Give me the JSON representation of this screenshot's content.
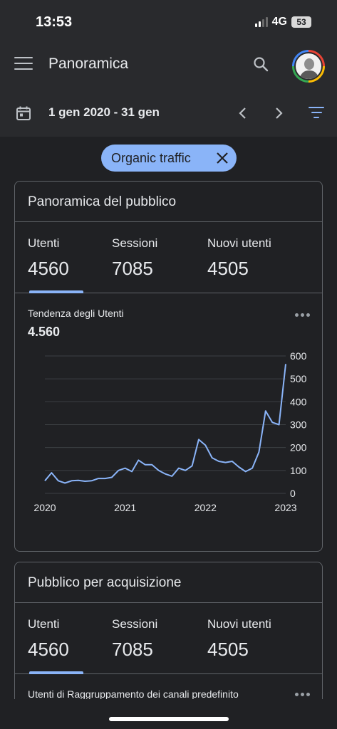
{
  "status": {
    "time": "13:53",
    "network": "4G",
    "battery": "53"
  },
  "app_bar": {
    "title": "Panoramica",
    "menu_icon": "menu-icon",
    "search_icon": "search-icon"
  },
  "date_bar": {
    "range": "1 gen 2020 - 31 gen"
  },
  "filter_chip": {
    "label": "Organic traffic"
  },
  "card_audience": {
    "title": "Panoramica del pubblico",
    "metrics": [
      {
        "label": "Utenti",
        "value": "4560"
      },
      {
        "label": "Sessioni",
        "value": "7085"
      },
      {
        "label": "Nuovi utenti",
        "value": "4505"
      }
    ],
    "trend_title": "Tendenza degli Utenti",
    "trend_value": "4.560"
  },
  "card_acquisition": {
    "title": "Pubblico per acquisizione",
    "metrics": [
      {
        "label": "Utenti",
        "value": "4560"
      },
      {
        "label": "Sessioni",
        "value": "7085"
      },
      {
        "label": "Nuovi utenti",
        "value": "4505"
      }
    ],
    "sub_title": "Utenti di Raggruppamento dei canali predefinito"
  },
  "colors": {
    "accent": "#8ab4f8",
    "background": "#202124",
    "surface": "#292a2d"
  },
  "chart_data": {
    "type": "line",
    "x": [
      "2020",
      "",
      "",
      "",
      "",
      "",
      "",
      "",
      "",
      "",
      "",
      "",
      "2021",
      "",
      "",
      "",
      "",
      "",
      "",
      "",
      "",
      "",
      "",
      "",
      "2022",
      "",
      "",
      "",
      "",
      "",
      "",
      "",
      "",
      "",
      "",
      "",
      "2023"
    ],
    "x_ticks": [
      "2020",
      "2021",
      "2022",
      "2023"
    ],
    "y_ticks": [
      "0",
      "100",
      "200",
      "300",
      "400",
      "500",
      "600"
    ],
    "ylim": [
      0,
      600
    ],
    "series": [
      {
        "values": [
          55,
          90,
          55,
          45,
          55,
          57,
          53,
          55,
          65,
          65,
          70,
          100,
          110,
          95,
          145,
          125,
          125,
          100,
          85,
          75,
          110,
          100,
          120,
          235,
          210,
          155,
          140,
          135,
          140,
          115,
          95,
          110,
          180,
          360,
          310,
          300,
          565
        ]
      }
    ],
    "grid": true
  }
}
